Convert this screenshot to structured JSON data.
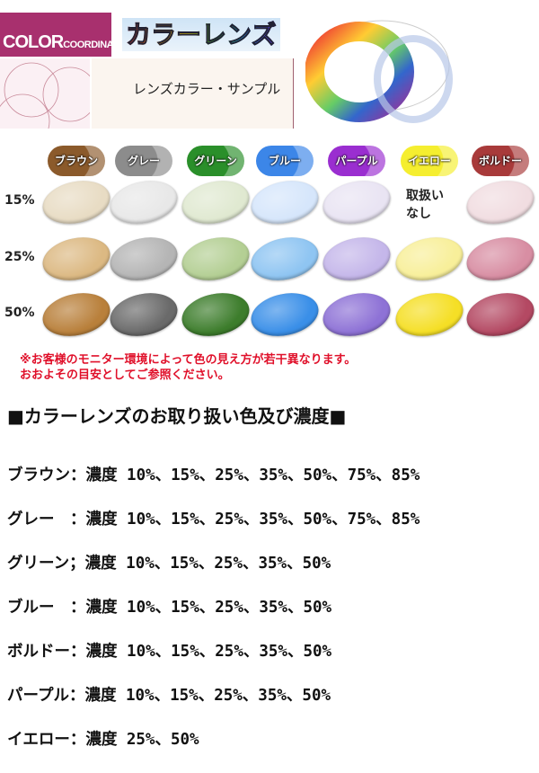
{
  "header": {
    "logo_main": "COLOR",
    "logo_sub": "COORDINATE",
    "banner": "カラーレンズ",
    "sample_title": "レンズカラー・サンプル"
  },
  "colors": [
    {
      "name": "ブラウン",
      "tag": "#8b5a2b",
      "shades": [
        "#e8dcc4",
        "#dcb983",
        "#b9803b"
      ]
    },
    {
      "name": "グレー",
      "tag": "#8c8c8c",
      "shades": [
        "#e8e8e8",
        "#b5b5b5",
        "#6a6a6a"
      ]
    },
    {
      "name": "グリーン",
      "tag": "#2a8f2a",
      "shades": [
        "#e0e9d1",
        "#b4cf94",
        "#3d7d2c"
      ]
    },
    {
      "name": "ブルー",
      "tag": "#3c86e8",
      "shades": [
        "#d6e6fb",
        "#8fc5f2",
        "#3a8fe8"
      ]
    },
    {
      "name": "パープル",
      "tag": "#9a2ed0",
      "shades": [
        "#e9e4f3",
        "#c5b7ea",
        "#8e72d6"
      ]
    },
    {
      "name": "イエロー",
      "tag": "#f5ee30",
      "shades": [
        null,
        "#f8ef9a",
        "#f5df26"
      ]
    },
    {
      "name": "ボルドー",
      "tag": "#a83a3a",
      "shades": [
        "#f1dde1",
        "#d88ea3",
        "#b44963"
      ]
    }
  ],
  "rows": [
    "15%",
    "25%",
    "50%"
  ],
  "not_available": [
    "取扱い",
    "なし"
  ],
  "notes": [
    "※お客様のモニター環境によって色の見え方が若干異なります。",
    "おおよその目安としてご参照ください。"
  ],
  "section_title": "■カラーレンズのお取り扱い色及び濃度■",
  "list": [
    "ブラウン：濃度 10%、15%、25%、35%、50%、75%、85%",
    "グレー　：濃度 10%、15%、25%、35%、50%、75%、85%",
    "グリーン；濃度 10%、15%、25%、35%、50%",
    "ブルー　：濃度 10%、15%、25%、35%、50%",
    "ボルドー：濃度 10%、15%、25%、35%、50%",
    "パープル：濃度 10%、15%、25%、35%、50%",
    "イエロー：濃度 25%、50%"
  ]
}
